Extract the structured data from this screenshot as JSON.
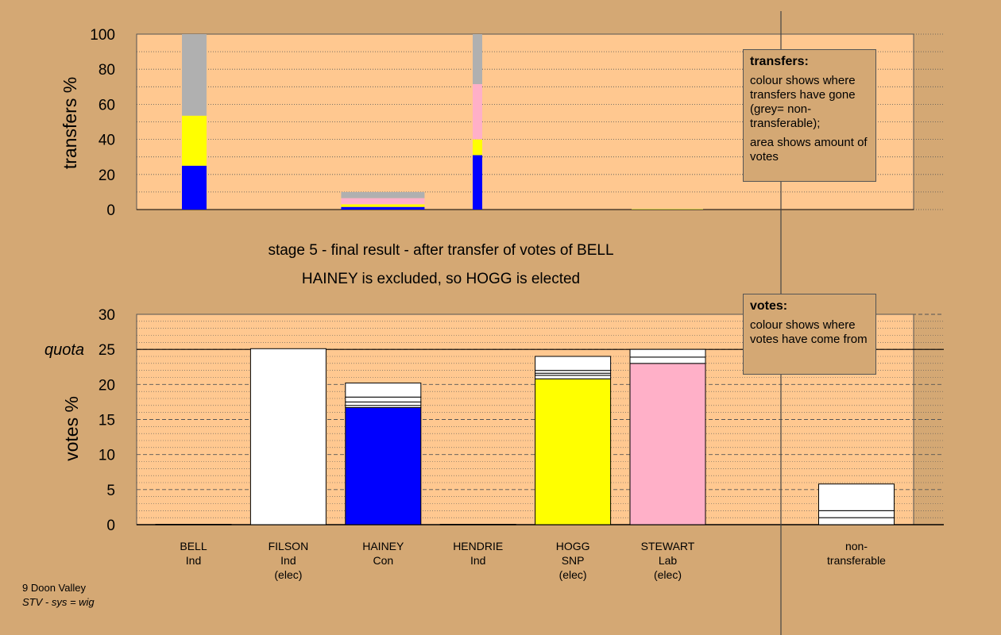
{
  "chart_data": [
    {
      "type": "bar",
      "stacked": true,
      "ylabel": "transfers %",
      "ylim": [
        0,
        100
      ],
      "yticks": [
        0,
        20,
        40,
        60,
        80,
        100
      ],
      "grid": "dotted horizontal",
      "bars": [
        {
          "x": 0,
          "segments": [
            {
              "color": "#0000ff",
              "value": 25
            },
            {
              "color": "#ffff00",
              "value": 28.5
            },
            {
              "color": "#b0b0b0",
              "value": 46.5
            }
          ]
        },
        {
          "x": 1,
          "segments": [
            {
              "color": "#0000ff",
              "value": 1.5
            },
            {
              "color": "#ffff00",
              "value": 1.5
            },
            {
              "color": "#ffb0c8",
              "value": 3.5
            },
            {
              "color": "#b0b0b0",
              "value": 3.5
            }
          ]
        },
        {
          "x": 4,
          "segments": [
            {
              "color": "#0000ff",
              "value": 31
            },
            {
              "color": "#ffff00",
              "value": 9
            },
            {
              "color": "#ffb0c8",
              "value": 31.5
            },
            {
              "color": "#b0b0b0",
              "value": 28.5
            }
          ]
        },
        {
          "x": 5,
          "segments": [
            {
              "color": "#c8c840",
              "value": 0.4
            }
          ]
        }
      ]
    },
    {
      "type": "bar",
      "stacked": true,
      "ylabel": "votes %",
      "ylim": [
        0,
        30
      ],
      "yticks": [
        0,
        5,
        10,
        15,
        20,
        25,
        30
      ],
      "quota_value": 25,
      "grid": "dashed major, dotted minor",
      "categories": [
        {
          "name": "BELL",
          "party": "Ind",
          "status": ""
        },
        {
          "name": "FILSON",
          "party": "Ind",
          "status": "(elec)"
        },
        {
          "name": "HAINEY",
          "party": "Con",
          "status": ""
        },
        {
          "name": "HENDRIE",
          "party": "Ind",
          "status": ""
        },
        {
          "name": "HOGG",
          "party": "SNP",
          "status": "(elec)"
        },
        {
          "name": "STEWART",
          "party": "Lab",
          "status": "(elec)"
        }
      ],
      "extra_category": {
        "line1": "non-",
        "line2": "transferable"
      },
      "bars": [
        {
          "x": 0,
          "segments": [
            {
              "color": "#0000ff",
              "value": 0.05
            }
          ]
        },
        {
          "x": 1,
          "segments": [
            {
              "color": "#ffffff",
              "value": 25.1
            }
          ]
        },
        {
          "x": 2,
          "segments": [
            {
              "color": "#0000ff",
              "value": 16.7
            },
            {
              "color": "#ffffff",
              "value": 0.3
            },
            {
              "color": "#ffffff",
              "value": 0.5
            },
            {
              "color": "#ffffff",
              "value": 0.7
            },
            {
              "color": "#ffffff",
              "value": 2.0
            }
          ]
        },
        {
          "x": 3,
          "segments": [
            {
              "color": "#0000ff",
              "value": 0.05
            }
          ]
        },
        {
          "x": 4,
          "segments": [
            {
              "color": "#ffff00",
              "value": 20.8
            },
            {
              "color": "#ffffff",
              "value": 0.5
            },
            {
              "color": "#ffffff",
              "value": 0.3
            },
            {
              "color": "#ffffff",
              "value": 0.4
            },
            {
              "color": "#ffffff",
              "value": 2.0
            }
          ]
        },
        {
          "x": 5,
          "segments": [
            {
              "color": "#ffb0c8",
              "value": 23
            },
            {
              "color": "#ffffff",
              "value": 0.9
            },
            {
              "color": "#ffffff",
              "value": 1.1
            }
          ]
        },
        {
          "x": 7,
          "segments": [
            {
              "color": "#ffffff",
              "value": 1
            },
            {
              "color": "#ffffff",
              "value": 1
            },
            {
              "color": "#ffffff",
              "value": 3.8
            }
          ]
        }
      ]
    }
  ],
  "labels": {
    "top_ylabel": "transfers %",
    "bottom_ylabel": "votes %",
    "quota": "quota",
    "stage_line1": "stage 5 - final result - after transfer of votes of BELL",
    "stage_line2": "HAINEY is excluded, so HOGG is elected"
  },
  "legends": {
    "transfers": {
      "title": "transfers:",
      "line1": "colour shows where transfers have gone (grey= non-transferable);",
      "line2": "area shows amount of votes"
    },
    "votes": {
      "title": "votes:",
      "line1": "colour shows where votes have come from"
    }
  },
  "footnote": {
    "line1": "9 Doon Valley",
    "line2": "STV - sys = wig"
  },
  "colors": {
    "background": "#d4a874",
    "plot_bg": "#ffc890",
    "blue": "#0000ff",
    "yellow": "#ffff00",
    "pink": "#ffb0c8",
    "grey": "#b0b0b0",
    "white": "#ffffff"
  }
}
